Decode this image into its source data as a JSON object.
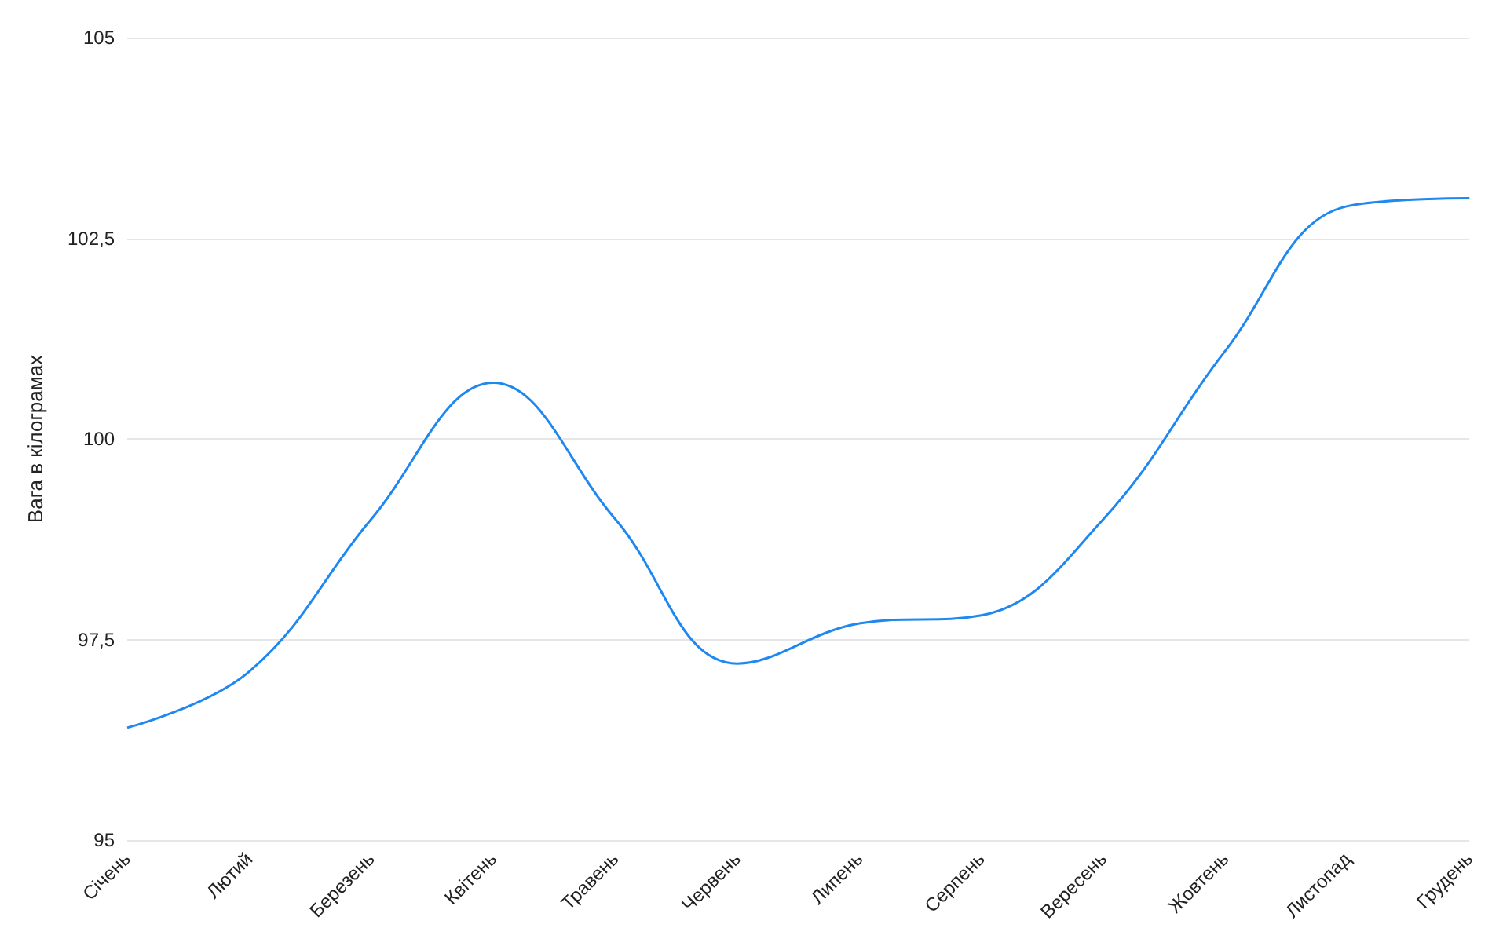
{
  "chart_data": {
    "type": "line",
    "ylabel": "Вага в кілограмах",
    "categories": [
      "Січень",
      "Лютий",
      "Березень",
      "Квітень",
      "Травень",
      "Червень",
      "Липень",
      "Серпень",
      "Вересень",
      "Жовтень",
      "Листопад",
      "Грудень"
    ],
    "series": [
      {
        "color": "#1e88f0",
        "values": [
          96.4,
          97.1,
          99,
          100.7,
          99,
          97.2,
          97.7,
          97.8,
          99,
          101.1,
          102.9,
          103
        ]
      }
    ],
    "ylim": [
      95,
      105
    ],
    "yticks": [
      95,
      {
        "value": 97.5,
        "label": "97,5"
      },
      100,
      {
        "value": 102.5,
        "label": "102,5"
      },
      105
    ],
    "grid": "y",
    "marker": "none",
    "line_style": "solid"
  }
}
